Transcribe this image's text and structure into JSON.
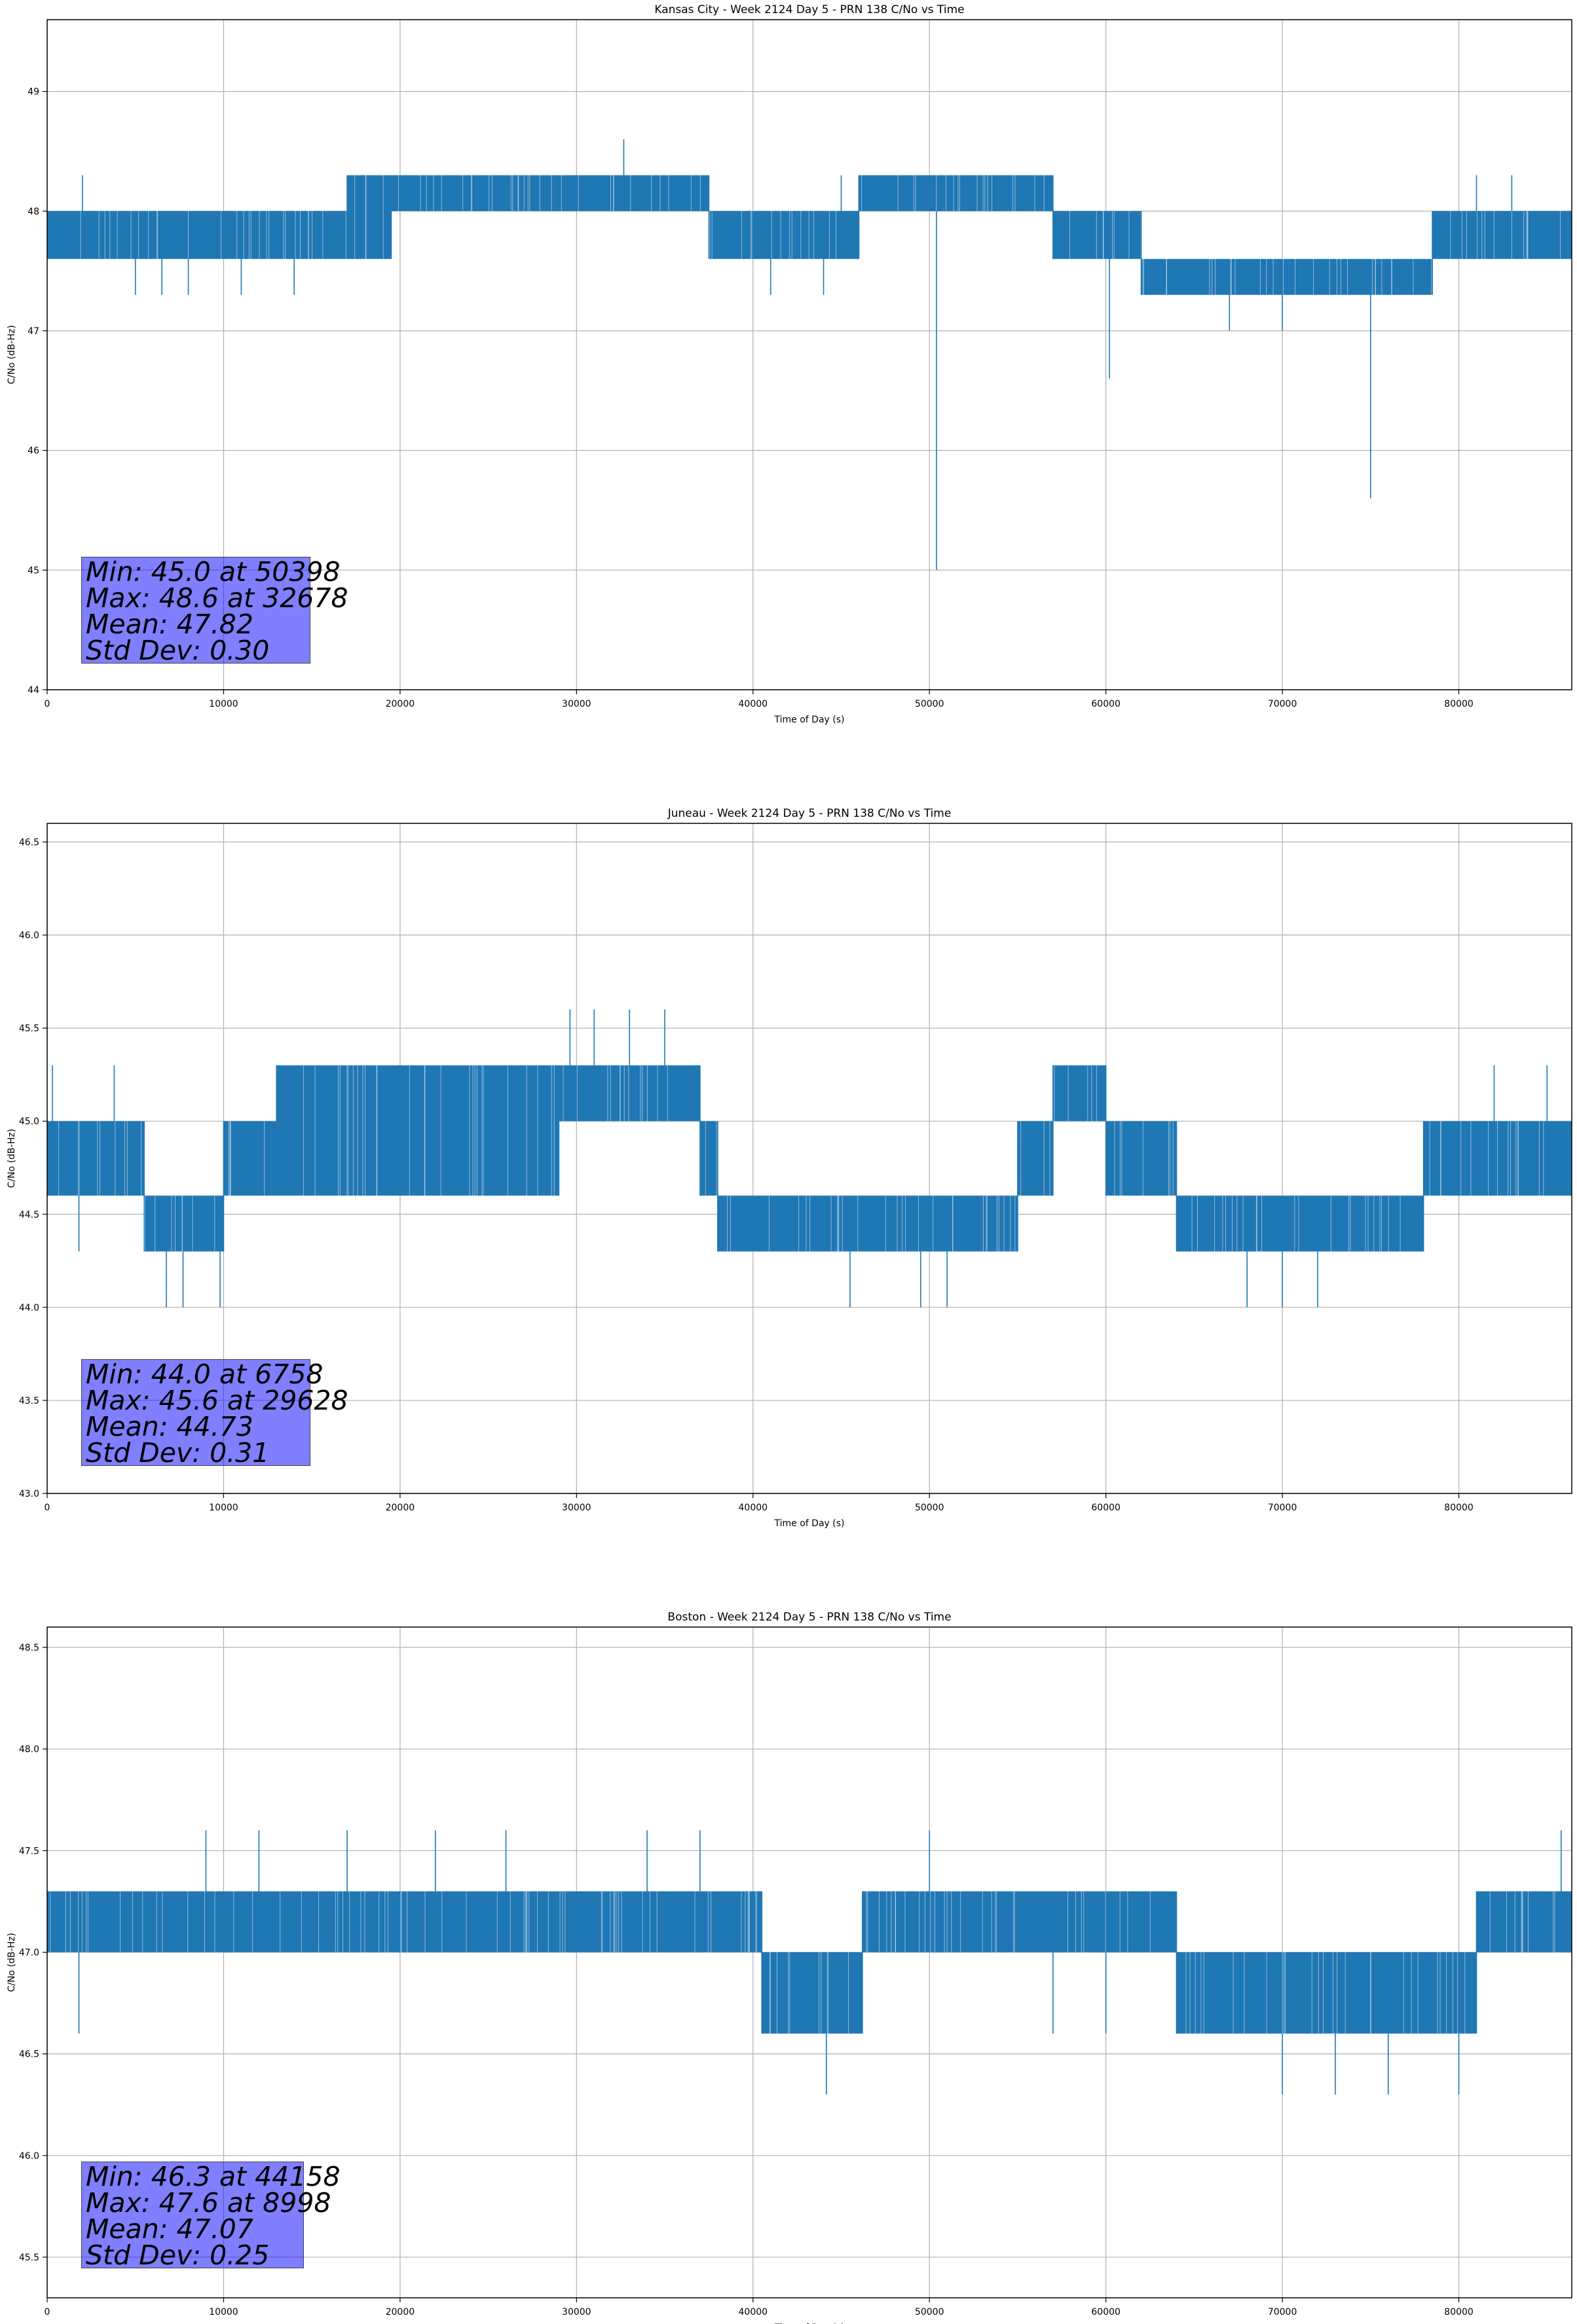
{
  "figure": {
    "xlabel": "Time of Day (s)",
    "ylabel": "C/No (dB-Hz)",
    "line_color": "#1f77b4",
    "stats_box_color": "#8080ff"
  },
  "chart_data": [
    {
      "type": "line",
      "title": "Kansas City - Week 2124 Day 5 - PRN 138 C/No vs Time",
      "xlabel": "Time of Day (s)",
      "ylabel": "C/No (dB-Hz)",
      "xlim": [
        0,
        86400
      ],
      "ylim": [
        44.0,
        49.6
      ],
      "xticks": [
        0,
        10000,
        20000,
        30000,
        40000,
        50000,
        60000,
        70000,
        80000
      ],
      "yticks": [
        44,
        45,
        46,
        47,
        48,
        49
      ],
      "ytick_labels": [
        "44",
        "45",
        "46",
        "47",
        "48",
        "49"
      ],
      "grid": true,
      "stats": [
        "Min: 45.0 at 50398",
        "Max: 48.6 at 32678",
        "Mean: 47.82",
        "Std Dev: 0.30"
      ],
      "segments": [
        {
          "x": [
            0,
            17000
          ],
          "lo": 47.6,
          "hi": 48.0
        },
        {
          "x": [
            17000,
            19500
          ],
          "lo": 47.6,
          "hi": 48.3
        },
        {
          "x": [
            19500,
            37500
          ],
          "lo": 48.0,
          "hi": 48.3
        },
        {
          "x": [
            37500,
            46000
          ],
          "lo": 47.6,
          "hi": 48.0
        },
        {
          "x": [
            46000,
            57000
          ],
          "lo": 48.0,
          "hi": 48.3
        },
        {
          "x": [
            57000,
            62000
          ],
          "lo": 47.6,
          "hi": 48.0
        },
        {
          "x": [
            62000,
            78500
          ],
          "lo": 47.3,
          "hi": 47.6
        },
        {
          "x": [
            78500,
            86400
          ],
          "lo": 47.6,
          "hi": 48.0
        }
      ],
      "spikes": [
        {
          "x": 2000,
          "y": 48.3
        },
        {
          "x": 5000,
          "y": 47.3
        },
        {
          "x": 6500,
          "y": 47.3
        },
        {
          "x": 8000,
          "y": 47.3
        },
        {
          "x": 11000,
          "y": 47.3
        },
        {
          "x": 14000,
          "y": 47.3
        },
        {
          "x": 32678,
          "y": 48.6
        },
        {
          "x": 41000,
          "y": 47.3
        },
        {
          "x": 44000,
          "y": 47.3
        },
        {
          "x": 45000,
          "y": 48.3
        },
        {
          "x": 50398,
          "y": 45.0
        },
        {
          "x": 60200,
          "y": 46.6
        },
        {
          "x": 67000,
          "y": 47.0
        },
        {
          "x": 70000,
          "y": 47.0
        },
        {
          "x": 75000,
          "y": 45.6
        },
        {
          "x": 78000,
          "y": 47.3
        },
        {
          "x": 81000,
          "y": 48.3
        },
        {
          "x": 83000,
          "y": 48.3
        }
      ]
    },
    {
      "type": "line",
      "title": "Juneau - Week 2124 Day 5 - PRN 138 C/No vs Time",
      "xlabel": "Time of Day (s)",
      "ylabel": "C/No (dB-Hz)",
      "xlim": [
        0,
        86400
      ],
      "ylim": [
        43.0,
        46.6
      ],
      "xticks": [
        0,
        10000,
        20000,
        30000,
        40000,
        50000,
        60000,
        70000,
        80000
      ],
      "yticks": [
        43.0,
        43.5,
        44.0,
        44.5,
        45.0,
        45.5,
        46.0,
        46.5
      ],
      "ytick_labels": [
        "43.0",
        "43.5",
        "44.0",
        "44.5",
        "45.0",
        "45.5",
        "46.0",
        "46.5"
      ],
      "grid": true,
      "stats": [
        "Min: 44.0 at 6758",
        "Max: 45.6 at 29628",
        "Mean: 44.73",
        "Std Dev: 0.31"
      ],
      "segments": [
        {
          "x": [
            0,
            5500
          ],
          "lo": 44.6,
          "hi": 45.0
        },
        {
          "x": [
            5500,
            10000
          ],
          "lo": 44.3,
          "hi": 44.6
        },
        {
          "x": [
            10000,
            13000
          ],
          "lo": 44.6,
          "hi": 45.0
        },
        {
          "x": [
            13000,
            29000
          ],
          "lo": 44.6,
          "hi": 45.3
        },
        {
          "x": [
            29000,
            37000
          ],
          "lo": 45.0,
          "hi": 45.3
        },
        {
          "x": [
            37000,
            38000
          ],
          "lo": 44.6,
          "hi": 45.0
        },
        {
          "x": [
            38000,
            55000
          ],
          "lo": 44.3,
          "hi": 44.6
        },
        {
          "x": [
            55000,
            57000
          ],
          "lo": 44.6,
          "hi": 45.0
        },
        {
          "x": [
            57000,
            60000
          ],
          "lo": 45.0,
          "hi": 45.3
        },
        {
          "x": [
            60000,
            64000
          ],
          "lo": 44.6,
          "hi": 45.0
        },
        {
          "x": [
            64000,
            78000
          ],
          "lo": 44.3,
          "hi": 44.6
        },
        {
          "x": [
            78000,
            86400
          ],
          "lo": 44.6,
          "hi": 45.0
        }
      ],
      "spikes": [
        {
          "x": 300,
          "y": 45.3
        },
        {
          "x": 1800,
          "y": 44.3
        },
        {
          "x": 3800,
          "y": 45.3
        },
        {
          "x": 6758,
          "y": 44.0
        },
        {
          "x": 7700,
          "y": 44.0
        },
        {
          "x": 9800,
          "y": 44.0
        },
        {
          "x": 29628,
          "y": 45.6
        },
        {
          "x": 31000,
          "y": 45.6
        },
        {
          "x": 33000,
          "y": 45.6
        },
        {
          "x": 35000,
          "y": 45.6
        },
        {
          "x": 45500,
          "y": 44.0
        },
        {
          "x": 49500,
          "y": 44.0
        },
        {
          "x": 51000,
          "y": 44.0
        },
        {
          "x": 68000,
          "y": 44.0
        },
        {
          "x": 70000,
          "y": 44.0
        },
        {
          "x": 72000,
          "y": 44.0
        },
        {
          "x": 82000,
          "y": 45.3
        },
        {
          "x": 85000,
          "y": 45.3
        }
      ]
    },
    {
      "type": "line",
      "title": "Boston - Week 2124 Day 5 - PRN 138 C/No vs Time",
      "xlabel": "Time of Day (s)",
      "ylabel": "C/No (dB-Hz)",
      "xlim": [
        0,
        86400
      ],
      "ylim": [
        45.3,
        48.6
      ],
      "xticks": [
        0,
        10000,
        20000,
        30000,
        40000,
        50000,
        60000,
        70000,
        80000
      ],
      "yticks": [
        45.5,
        46.0,
        46.5,
        47.0,
        47.5,
        48.0,
        48.5
      ],
      "ytick_labels": [
        "45.5",
        "46.0",
        "46.5",
        "47.0",
        "47.5",
        "48.0",
        "48.5"
      ],
      "grid": true,
      "stats": [
        "Min: 46.3 at 44158",
        "Max: 47.6 at 8998",
        "Mean: 47.07",
        "Std Dev: 0.25"
      ],
      "segments": [
        {
          "x": [
            0,
            40500
          ],
          "lo": 47.0,
          "hi": 47.3
        },
        {
          "x": [
            40500,
            46200
          ],
          "lo": 46.6,
          "hi": 47.0
        },
        {
          "x": [
            46200,
            64000
          ],
          "lo": 47.0,
          "hi": 47.3
        },
        {
          "x": [
            64000,
            81000
          ],
          "lo": 46.6,
          "hi": 47.0
        },
        {
          "x": [
            81000,
            86400
          ],
          "lo": 47.0,
          "hi": 47.3
        }
      ],
      "spikes": [
        {
          "x": 1800,
          "y": 46.6
        },
        {
          "x": 8998,
          "y": 47.6
        },
        {
          "x": 12000,
          "y": 47.6
        },
        {
          "x": 17000,
          "y": 47.6
        },
        {
          "x": 22000,
          "y": 47.6
        },
        {
          "x": 26000,
          "y": 47.6
        },
        {
          "x": 34000,
          "y": 47.6
        },
        {
          "x": 37000,
          "y": 47.6
        },
        {
          "x": 44158,
          "y": 46.3
        },
        {
          "x": 50000,
          "y": 47.6
        },
        {
          "x": 57000,
          "y": 46.6
        },
        {
          "x": 60000,
          "y": 46.6
        },
        {
          "x": 70000,
          "y": 46.3
        },
        {
          "x": 73000,
          "y": 46.3
        },
        {
          "x": 76000,
          "y": 46.3
        },
        {
          "x": 80000,
          "y": 46.3
        },
        {
          "x": 85800,
          "y": 47.6
        }
      ]
    }
  ]
}
